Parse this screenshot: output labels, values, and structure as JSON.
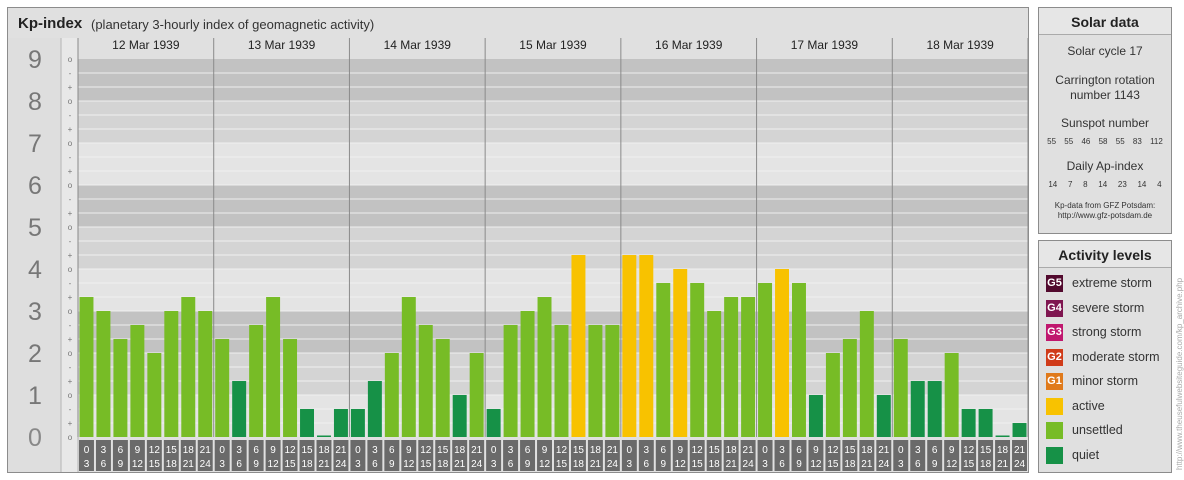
{
  "header": {
    "title": "Kp-index",
    "subtitle": "(planetary 3-hourly index of geomagnetic activity)"
  },
  "colors": {
    "quiet": "#169147",
    "unsettled": "#77bc26",
    "active": "#f8c200",
    "minor_storm": "#e07a1b",
    "moderate_storm": "#d03b19",
    "strong_storm": "#c0176e",
    "severe_storm": "#7f1650",
    "extreme_storm": "#520a2e"
  },
  "chart_data": {
    "type": "bar",
    "title": "Kp-index",
    "ylabel": "Kp",
    "ylim": [
      0,
      9
    ],
    "y_tick_labels": [
      "0",
      "1",
      "2",
      "3",
      "4",
      "5",
      "6",
      "7",
      "8",
      "9"
    ],
    "sub_tick_labels": [
      "o",
      "+",
      "-",
      "o",
      "+",
      "-",
      "o",
      "+",
      "-",
      "o",
      "+",
      "-",
      "o",
      "+",
      "-",
      "o",
      "+",
      "-",
      "o",
      "+",
      "-",
      "o",
      "+",
      "-",
      "o",
      "+",
      "-",
      "o"
    ],
    "days": [
      "12 Mar 1939",
      "13 Mar 1939",
      "14 Mar 1939",
      "15 Mar 1939",
      "16 Mar 1939",
      "17 Mar 1939",
      "18 Mar 1939"
    ],
    "interval_start": [
      "0",
      "3",
      "6",
      "9",
      "12",
      "15",
      "18",
      "21"
    ],
    "interval_end": [
      "3",
      "6",
      "9",
      "12",
      "15",
      "18",
      "21",
      "24"
    ],
    "series": [
      {
        "values": [
          3.333,
          3.0,
          2.333,
          2.667,
          2.0,
          3.0,
          3.333,
          3.0,
          2.333,
          1.333,
          2.667,
          3.333,
          2.333,
          0.667,
          0.0,
          0.667,
          0.667,
          1.333,
          2.0,
          3.333,
          2.667,
          2.333,
          1.0,
          2.0,
          0.667,
          2.667,
          3.0,
          3.333,
          2.667,
          4.333,
          2.667,
          2.667,
          4.333,
          4.333,
          3.667,
          4.0,
          3.667,
          3.0,
          3.333,
          3.333,
          3.667,
          4.0,
          3.667,
          1.0,
          2.0,
          2.333,
          3.0,
          1.0,
          2.333,
          1.333,
          1.333,
          2.0,
          0.667,
          0.667,
          0.0,
          0.333
        ]
      }
    ]
  },
  "solar": {
    "title": "Solar data",
    "cycle": "Solar cycle 17",
    "carrington_line1": "Carrington rotation",
    "carrington_line2": "number 1143",
    "sunspot_title": "Sunspot number",
    "sunspot_values": [
      "55",
      "55",
      "46",
      "58",
      "55",
      "83",
      "112"
    ],
    "ap_title": "Daily Ap-index",
    "ap_values": [
      "14",
      "7",
      "8",
      "14",
      "23",
      "14",
      "4"
    ],
    "credit_line1": "Kp-data from GFZ Potsdam:",
    "credit_line2": "http://www.gfz-potsdam.de"
  },
  "activity_levels": {
    "title": "Activity levels",
    "items": [
      {
        "badge": "G5",
        "label": "extreme storm",
        "color": "#520a2e"
      },
      {
        "badge": "G4",
        "label": "severe storm",
        "color": "#7f1650"
      },
      {
        "badge": "G3",
        "label": "strong storm",
        "color": "#c0176e"
      },
      {
        "badge": "G2",
        "label": "moderate storm",
        "color": "#d03b19"
      },
      {
        "badge": "G1",
        "label": "minor storm",
        "color": "#e07a1b"
      },
      {
        "badge": "",
        "label": "active",
        "color": "#f8c200"
      },
      {
        "badge": "",
        "label": "unsettled",
        "color": "#77bc26"
      },
      {
        "badge": "",
        "label": "quiet",
        "color": "#169147"
      }
    ]
  },
  "watermark": "http://www.theusefulwebsiteguide.com/kp_archive.php"
}
